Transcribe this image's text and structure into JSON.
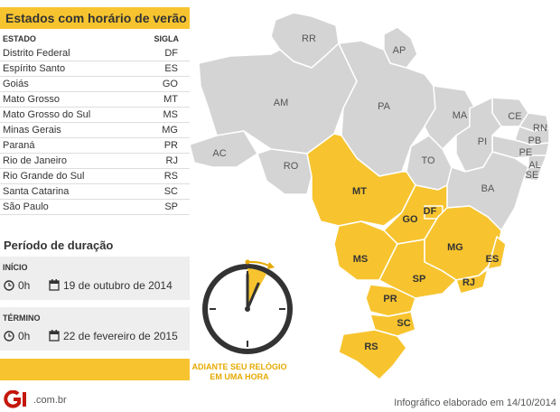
{
  "title": "Estados com horário de verão",
  "table": {
    "col_state": "ESTADO",
    "col_abbr": "SIGLA",
    "rows": [
      {
        "name": "Distrito Federal",
        "abbr": "DF"
      },
      {
        "name": "Espírito Santo",
        "abbr": "ES"
      },
      {
        "name": "Goiás",
        "abbr": "GO"
      },
      {
        "name": "Mato Grosso",
        "abbr": "MT"
      },
      {
        "name": "Mato Grosso do Sul",
        "abbr": "MS"
      },
      {
        "name": "Minas Gerais",
        "abbr": "MG"
      },
      {
        "name": "Paraná",
        "abbr": "PR"
      },
      {
        "name": "Rio de Janeiro",
        "abbr": "RJ"
      },
      {
        "name": "Rio Grande do Sul",
        "abbr": "RS"
      },
      {
        "name": "Santa Catarina",
        "abbr": "SC"
      },
      {
        "name": "São Paulo",
        "abbr": "SP"
      }
    ]
  },
  "period": {
    "title": "Período de duração",
    "start": {
      "label": "INÍCIO",
      "time": "0h",
      "date": "19 de outubro de 2014"
    },
    "end": {
      "label": "TÉRMINO",
      "time": "0h",
      "date": "22 de fevereiro de 2015"
    }
  },
  "clock_caption": {
    "line1": "ADIANTE SEU RELÓGIO",
    "line2": "EM UMA HORA"
  },
  "map_labels": {
    "RR": "RR",
    "AP": "AP",
    "AM": "AM",
    "PA": "PA",
    "MA": "MA",
    "CE": "CE",
    "RN": "RN",
    "PB": "PB",
    "PI": "PI",
    "PE": "PE",
    "AL": "AL",
    "SE": "SE",
    "AC": "AC",
    "RO": "RO",
    "TO": "TO",
    "BA": "BA",
    "MT": "MT",
    "GO": "GO",
    "DF": "DF",
    "MG": "MG",
    "ES": "ES",
    "MS": "MS",
    "SP": "SP",
    "RJ": "RJ",
    "PR": "PR",
    "SC": "SC",
    "RS": "RS"
  },
  "footer": {
    "brand": "G1",
    "domain": ".com.br",
    "credit": "Infográfico elaborado em 14/10/2014"
  },
  "colors": {
    "highlight": "#f7c42f",
    "other_states": "#d4d4d4",
    "clock_caption": "#e6a900"
  }
}
